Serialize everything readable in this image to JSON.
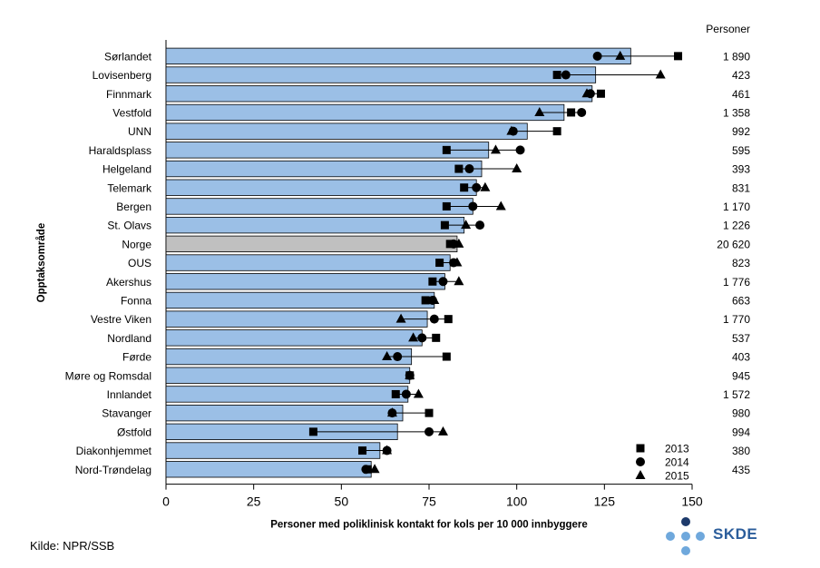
{
  "chart_data": {
    "type": "bar",
    "ylabel": "Opptaksområde",
    "xlabel": "Personer med poliklinisk kontakt for kols per 10 000 innbyggere",
    "persons_header": "Personer",
    "xlim": [
      0,
      150
    ],
    "xticks": [
      "0",
      "25",
      "50",
      "75",
      "100",
      "125",
      "150"
    ],
    "legend": {
      "position": "bottom-right",
      "entries": [
        "2013",
        "2014",
        "2015"
      ]
    },
    "highlight_category": "Norge",
    "colors": {
      "bar": "#9bbfe6",
      "highlight": "#c0c0c0",
      "outline": "#000000",
      "marker": "#000000"
    },
    "categories": [
      "Sørlandet",
      "Lovisenberg",
      "Finnmark",
      "Vestfold",
      "UNN",
      "Haraldsplass",
      "Helgeland",
      "Telemark",
      "Bergen",
      "St. Olavs",
      "Norge",
      "OUS",
      "Akershus",
      "Fonna",
      "Vestre Viken",
      "Nordland",
      "Førde",
      "Møre og Romsdal",
      "Innlandet",
      "Stavanger",
      "Østfold",
      "Diakonhjemmet",
      "Nord-Trøndelag"
    ],
    "values": [
      132.5,
      122.5,
      121.5,
      113.5,
      103,
      92,
      90,
      88.5,
      87.5,
      85,
      83,
      81,
      79.5,
      76.5,
      74.5,
      73,
      70,
      69.5,
      69,
      67.5,
      66,
      61,
      58.5
    ],
    "series": [
      {
        "name": "2013",
        "marker": "square",
        "values": [
          146,
          111.5,
          124,
          115.5,
          111.5,
          80,
          83.5,
          85,
          80,
          79.5,
          81,
          78,
          76,
          74,
          80.5,
          77,
          80,
          69.5,
          65.5,
          75,
          42,
          56,
          57.5
        ]
      },
      {
        "name": "2014",
        "marker": "circle",
        "values": [
          123,
          114,
          121,
          118.5,
          99,
          101,
          86.5,
          88.5,
          87.5,
          89.5,
          82,
          82,
          79,
          76,
          76.5,
          73,
          66,
          69.5,
          68.5,
          64.5,
          75,
          63,
          57
        ]
      },
      {
        "name": "2015",
        "marker": "triangle",
        "values": [
          129.5,
          141,
          120,
          106.5,
          98.5,
          94,
          100,
          91,
          95.5,
          85.5,
          83.5,
          83,
          83.5,
          76.5,
          67,
          70.5,
          63,
          69.5,
          72,
          64.5,
          79,
          63,
          59.5
        ]
      }
    ],
    "persons": [
      "1 890",
      "423",
      "461",
      "1 358",
      "992",
      "595",
      "393",
      "831",
      "1 170",
      "1 226",
      "20 620",
      "823",
      "1 776",
      "663",
      "1 770",
      "537",
      "403",
      "945",
      "1 572",
      "980",
      "994",
      "380",
      "435"
    ]
  },
  "source": "Kilde: NPR/SSB",
  "logo": {
    "text": "SKDE",
    "dark_color": "#1d3a6b",
    "light_color": "#6fa8dc",
    "text_color": "#2b5d9b"
  }
}
